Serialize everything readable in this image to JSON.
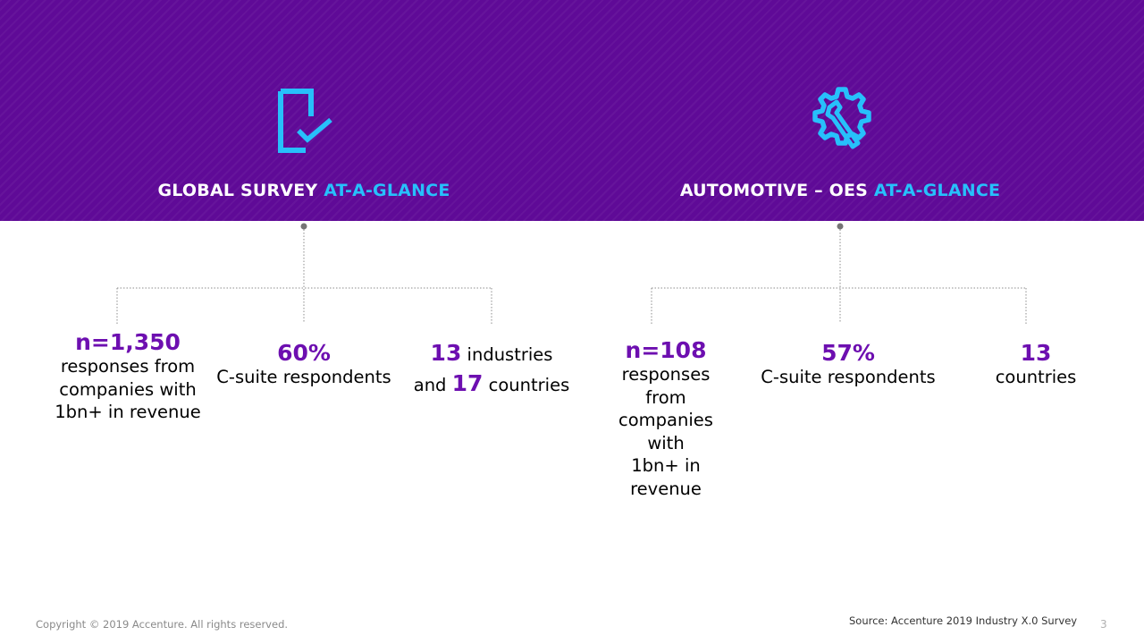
{
  "colors": {
    "banner": "#5f0a97",
    "accent_blue": "#27c0fb",
    "stat_purple": "#6d0fb0",
    "connector": "#8c8c8c"
  },
  "sections": [
    {
      "icon": "document-check-icon",
      "title_main": "GLOBAL SURVEY",
      "title_accent": "AT-A-GLANCE",
      "stats": [
        {
          "value": "n=1,350",
          "lines": [
            "responses from",
            "companies with",
            "1bn+ in revenue"
          ]
        },
        {
          "value": "60%",
          "lines": [
            "C-suite respondents"
          ]
        },
        {
          "value_a": "13",
          "text_a": " industries",
          "text_b": "and ",
          "value_b": "17",
          "text_c": " countries"
        }
      ]
    },
    {
      "icon": "gear-wrench-icon",
      "title_main": "AUTOMOTIVE – OES",
      "title_accent": "AT-A-GLANCE",
      "stats": [
        {
          "value": "n=108",
          "lines": [
            "responses",
            "from",
            "companies",
            "with",
            "1bn+ in",
            "revenue"
          ]
        },
        {
          "value": "57%",
          "lines": [
            "C-suite respondents"
          ]
        },
        {
          "value": "13",
          "lines": [
            "countries"
          ]
        }
      ]
    }
  ],
  "footer": {
    "copyright": "Copyright © 2019 Accenture. All rights reserved.",
    "source": "Source: Accenture 2019 Industry X.0 Survey",
    "page_number": "3"
  }
}
